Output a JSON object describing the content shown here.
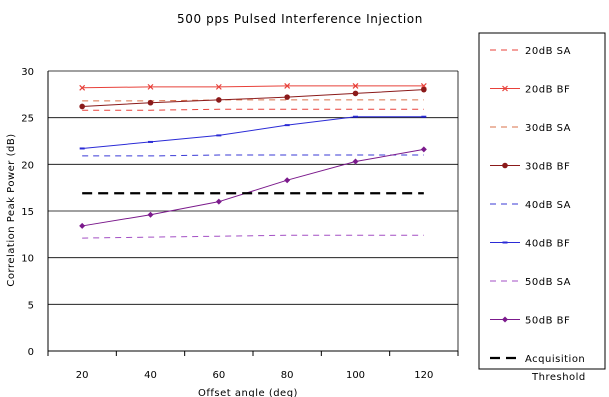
{
  "chart_data": {
    "type": "line",
    "title": "500 pps Pulsed Interference Injection",
    "xlabel": "Offset angle (deg)",
    "ylabel": "Correlation Peak Power (dB)",
    "x": [
      20,
      40,
      60,
      80,
      100,
      120
    ],
    "xlim": [
      10,
      130
    ],
    "ylim": [
      0,
      30
    ],
    "y_ticks": [
      0,
      5,
      10,
      15,
      20,
      25,
      30
    ],
    "grid": "horizontal",
    "legend_position": "right",
    "series": [
      {
        "name": "20dB SA",
        "color": "#e8413a",
        "style": "dashed",
        "marker": "none",
        "values": [
          25.8,
          25.8,
          25.9,
          25.9,
          25.9,
          25.9
        ]
      },
      {
        "name": "20dB BF",
        "color": "#e8413a",
        "style": "solid",
        "marker": "x",
        "values": [
          28.2,
          28.3,
          28.3,
          28.4,
          28.4,
          28.4
        ]
      },
      {
        "name": "30dB SA",
        "color": "#d9724a",
        "style": "dashed",
        "marker": "none",
        "values": [
          26.8,
          26.8,
          26.9,
          26.9,
          26.9,
          26.9
        ]
      },
      {
        "name": "30dB BF",
        "color": "#8b1a1a",
        "style": "solid",
        "marker": "circle",
        "values": [
          26.2,
          26.6,
          26.9,
          27.2,
          27.6,
          28.0
        ]
      },
      {
        "name": "40dB SA",
        "color": "#3a3ad6",
        "style": "dashed",
        "marker": "none",
        "values": [
          20.9,
          20.9,
          21.0,
          21.0,
          21.0,
          21.0
        ]
      },
      {
        "name": "40dB BF",
        "color": "#2b2bd6",
        "style": "solid",
        "marker": "dash",
        "values": [
          21.7,
          22.4,
          23.1,
          24.2,
          25.1,
          25.1
        ]
      },
      {
        "name": "50dB SA",
        "color": "#a34fc4",
        "style": "dashed",
        "marker": "none",
        "values": [
          12.1,
          12.2,
          12.3,
          12.4,
          12.4,
          12.4
        ]
      },
      {
        "name": "50dB BF",
        "color": "#7b1a8c",
        "style": "solid",
        "marker": "diamond",
        "values": [
          13.4,
          14.6,
          16.0,
          18.3,
          20.3,
          21.6
        ]
      },
      {
        "name": "Acquisition Threshold",
        "color": "#000000",
        "style": "dashed-thick",
        "marker": "none",
        "values": [
          16.9,
          16.9,
          16.9,
          16.9,
          16.9,
          16.9
        ]
      }
    ]
  }
}
